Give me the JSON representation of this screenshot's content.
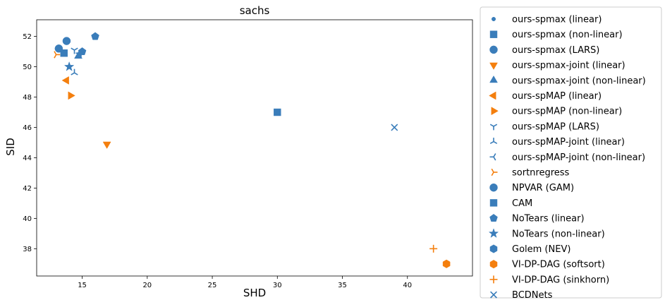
{
  "chart_data": {
    "type": "scatter",
    "title": "sachs",
    "xlabel": "SHD",
    "ylabel": "SID",
    "xlim": [
      11.5,
      45.0
    ],
    "ylim": [
      36.2,
      53.1
    ],
    "xticks": [
      15,
      20,
      25,
      30,
      35,
      40
    ],
    "yticks": [
      38,
      40,
      42,
      44,
      46,
      48,
      50,
      52
    ],
    "grid": false,
    "legend_position": "outside-right",
    "colors": {
      "blue": "#3a7dba",
      "orange": "#f47f0e"
    },
    "series": [
      {
        "name": "ours-spmax (linear)",
        "marker": "point",
        "color": "#3a7dba",
        "points": [
          {
            "x": 13.5,
            "y": 51.0
          }
        ]
      },
      {
        "name": "ours-spmax (non-linear)",
        "marker": "square",
        "color": "#3a7dba",
        "points": [
          {
            "x": 13.6,
            "y": 50.9
          },
          {
            "x": 30.0,
            "y": 47.0
          }
        ]
      },
      {
        "name": "ours-spmax (LARS)",
        "marker": "circle",
        "color": "#3a7dba",
        "points": [
          {
            "x": 13.8,
            "y": 51.7
          }
        ]
      },
      {
        "name": "ours-spmax-joint (linear)",
        "marker": "triangle-down",
        "color": "#f47f0e",
        "points": [
          {
            "x": 16.9,
            "y": 44.9
          }
        ]
      },
      {
        "name": "ours-spmax-joint (non-linear)",
        "marker": "triangle-up",
        "color": "#3a7dba",
        "points": [
          {
            "x": 14.7,
            "y": 50.7
          }
        ]
      },
      {
        "name": "ours-spMAP (linear)",
        "marker": "triangle-left",
        "color": "#f47f0e",
        "points": [
          {
            "x": 13.8,
            "y": 49.1
          }
        ]
      },
      {
        "name": "ours-spMAP (non-linear)",
        "marker": "triangle-right",
        "color": "#f47f0e",
        "points": [
          {
            "x": 14.1,
            "y": 48.1
          }
        ]
      },
      {
        "name": "ours-spMAP (LARS)",
        "marker": "tri-down",
        "color": "#3a7dba",
        "points": [
          {
            "x": 14.4,
            "y": 51.1
          }
        ]
      },
      {
        "name": "ours-spMAP-joint (linear)",
        "marker": "tri-up",
        "color": "#3a7dba",
        "points": [
          {
            "x": 14.4,
            "y": 49.6
          }
        ]
      },
      {
        "name": "ours-spMAP-joint (non-linear)",
        "marker": "tri-left",
        "color": "#3a7dba",
        "points": [
          {
            "x": 14.8,
            "y": 50.9
          }
        ]
      },
      {
        "name": "sortnregress",
        "marker": "tri-right",
        "color": "#f47f0e",
        "points": [
          {
            "x": 13.0,
            "y": 50.8
          }
        ]
      },
      {
        "name": "NPVAR (GAM)",
        "marker": "circle",
        "color": "#3a7dba",
        "points": [
          {
            "x": 13.2,
            "y": 51.2
          }
        ]
      },
      {
        "name": "CAM",
        "marker": "square",
        "color": "#3a7dba",
        "points": []
      },
      {
        "name": "NoTears (linear)",
        "marker": "pentagon",
        "color": "#3a7dba",
        "points": [
          {
            "x": 16.0,
            "y": 52.0
          },
          {
            "x": 15.0,
            "y": 51.0
          }
        ]
      },
      {
        "name": "NoTears (non-linear)",
        "marker": "star",
        "color": "#3a7dba",
        "points": [
          {
            "x": 14.0,
            "y": 50.0
          }
        ]
      },
      {
        "name": "Golem (NEV)",
        "marker": "hexagon",
        "color": "#3a7dba",
        "points": []
      },
      {
        "name": "VI-DP-DAG (softsort)",
        "marker": "hexagon",
        "color": "#f47f0e",
        "points": [
          {
            "x": 43.0,
            "y": 37.0
          }
        ]
      },
      {
        "name": "VI-DP-DAG (sinkhorn)",
        "marker": "plus",
        "color": "#f47f0e",
        "points": [
          {
            "x": 42.0,
            "y": 38.0
          }
        ]
      },
      {
        "name": "BCDNets",
        "marker": "x",
        "color": "#3a7dba",
        "points": [
          {
            "x": 39.0,
            "y": 46.0
          }
        ]
      }
    ]
  }
}
